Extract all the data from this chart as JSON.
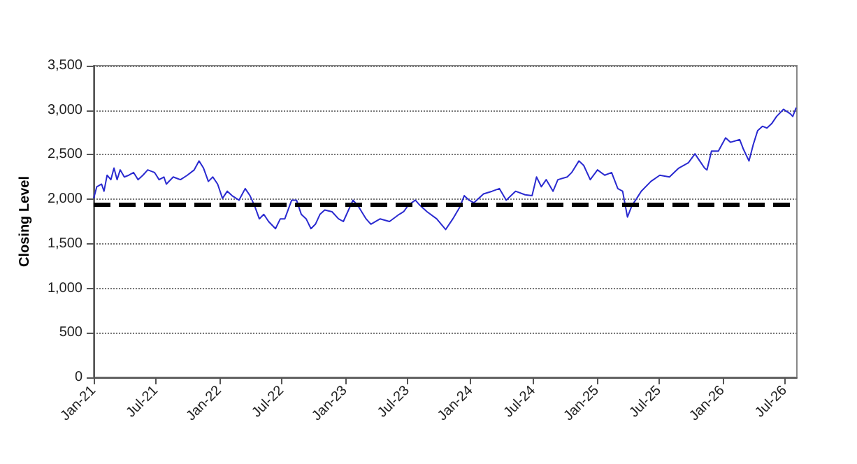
{
  "chart_data": {
    "type": "line",
    "ylabel": "Closing Level",
    "xlim": [
      "2021-01-01",
      "2026-08-05"
    ],
    "ylim": [
      0,
      3500
    ],
    "yticks": [
      {
        "value": 0,
        "label": "0"
      },
      {
        "value": 500,
        "label": "500"
      },
      {
        "value": 1000,
        "label": "1,000"
      },
      {
        "value": 1500,
        "label": "1,500"
      },
      {
        "value": 2000,
        "label": "2,000"
      },
      {
        "value": 2500,
        "label": "2,500"
      },
      {
        "value": 3000,
        "label": "3,000"
      },
      {
        "value": 3500,
        "label": "3,500"
      }
    ],
    "xticks": [
      {
        "value": "2021-01-01",
        "label": "Jan-21"
      },
      {
        "value": "2021-07-01",
        "label": "Jul-21"
      },
      {
        "value": "2022-01-01",
        "label": "Jan-22"
      },
      {
        "value": "2022-07-01",
        "label": "Jul-22"
      },
      {
        "value": "2023-01-01",
        "label": "Jan-23"
      },
      {
        "value": "2023-07-01",
        "label": "Jul-23"
      },
      {
        "value": "2024-01-01",
        "label": "Jan-24"
      },
      {
        "value": "2024-07-01",
        "label": "Jul-24"
      },
      {
        "value": "2025-01-01",
        "label": "Jan-25"
      },
      {
        "value": "2025-07-01",
        "label": "Jul-25"
      },
      {
        "value": "2026-01-01",
        "label": "Jan-26"
      },
      {
        "value": "2026-07-01",
        "label": "Jul-26"
      }
    ],
    "grid": "y",
    "marker": "none",
    "line_style": "solid",
    "ref_lines": [
      {
        "axis": "y",
        "value": 1950,
        "color": "#000000",
        "line_style": "dashed"
      }
    ],
    "x": [
      "2021-01-01",
      "2021-01-10",
      "2021-01-24",
      "2021-01-31",
      "2021-02-09",
      "2021-02-20",
      "2021-03-01",
      "2021-03-10",
      "2021-03-19",
      "2021-03-31",
      "2021-04-13",
      "2021-04-27",
      "2021-05-10",
      "2021-05-24",
      "2021-06-07",
      "2021-06-27",
      "2021-07-10",
      "2021-07-24",
      "2021-07-31",
      "2021-08-20",
      "2021-09-10",
      "2021-09-30",
      "2021-10-20",
      "2021-11-03",
      "2021-11-16",
      "2021-11-30",
      "2021-12-13",
      "2021-12-27",
      "2022-01-10",
      "2022-01-24",
      "2022-02-07",
      "2022-02-27",
      "2022-03-17",
      "2022-03-31",
      "2022-04-13",
      "2022-04-27",
      "2022-05-10",
      "2022-05-24",
      "2022-06-13",
      "2022-06-27",
      "2022-07-10",
      "2022-07-30",
      "2022-08-13",
      "2022-08-27",
      "2022-09-10",
      "2022-09-24",
      "2022-10-07",
      "2022-10-20",
      "2022-11-03",
      "2022-11-24",
      "2022-12-13",
      "2022-12-27",
      "2023-01-24",
      "2023-02-07",
      "2023-03-03",
      "2023-03-17",
      "2023-04-13",
      "2023-05-10",
      "2023-06-07",
      "2023-06-20",
      "2023-07-03",
      "2023-07-24",
      "2023-08-07",
      "2023-08-27",
      "2023-09-24",
      "2023-10-20",
      "2023-11-10",
      "2023-11-30",
      "2023-12-13",
      "2023-12-27",
      "2024-01-10",
      "2024-02-07",
      "2024-03-03",
      "2024-03-24",
      "2024-04-13",
      "2024-05-10",
      "2024-06-07",
      "2024-06-27",
      "2024-07-10",
      "2024-07-24",
      "2024-08-07",
      "2024-08-27",
      "2024-09-10",
      "2024-10-07",
      "2024-10-20",
      "2024-11-10",
      "2024-11-24",
      "2024-12-13",
      "2025-01-03",
      "2025-01-24",
      "2025-02-13",
      "2025-03-03",
      "2025-03-17",
      "2025-03-31",
      "2025-04-13",
      "2025-04-27",
      "2025-05-10",
      "2025-06-07",
      "2025-07-03",
      "2025-07-31",
      "2025-08-27",
      "2025-09-24",
      "2025-10-13",
      "2025-10-27",
      "2025-11-10",
      "2025-11-17",
      "2025-11-30",
      "2025-12-20",
      "2026-01-10",
      "2026-01-24",
      "2026-02-20",
      "2026-03-03",
      "2026-03-19",
      "2026-03-31",
      "2026-04-13",
      "2026-04-27",
      "2026-05-10",
      "2026-05-24",
      "2026-06-07",
      "2026-06-27",
      "2026-07-17",
      "2026-07-24",
      "2026-08-03"
    ],
    "series": [
      {
        "color": "#2a2ad0",
        "values": [
          2010,
          2140,
          2170,
          2090,
          2270,
          2220,
          2350,
          2220,
          2330,
          2250,
          2270,
          2300,
          2220,
          2270,
          2330,
          2300,
          2220,
          2250,
          2170,
          2250,
          2220,
          2270,
          2330,
          2430,
          2350,
          2200,
          2250,
          2170,
          2010,
          2090,
          2040,
          1990,
          2120,
          2040,
          1930,
          1780,
          1830,
          1750,
          1670,
          1780,
          1780,
          1990,
          1990,
          1830,
          1780,
          1670,
          1720,
          1830,
          1880,
          1860,
          1780,
          1750,
          1990,
          1930,
          1780,
          1720,
          1780,
          1750,
          1830,
          1860,
          1930,
          1990,
          1930,
          1860,
          1780,
          1660,
          1780,
          1910,
          2040,
          1990,
          1960,
          2060,
          2090,
          2120,
          1990,
          2090,
          2050,
          2040,
          2250,
          2140,
          2220,
          2090,
          2220,
          2250,
          2300,
          2430,
          2380,
          2220,
          2330,
          2270,
          2300,
          2120,
          2090,
          1800,
          1930,
          2010,
          2090,
          2200,
          2270,
          2250,
          2350,
          2410,
          2510,
          2430,
          2350,
          2330,
          2540,
          2540,
          2690,
          2640,
          2670,
          2560,
          2430,
          2610,
          2770,
          2820,
          2800,
          2850,
          2930,
          3010,
          2960,
          2930,
          3030
        ]
      }
    ]
  }
}
